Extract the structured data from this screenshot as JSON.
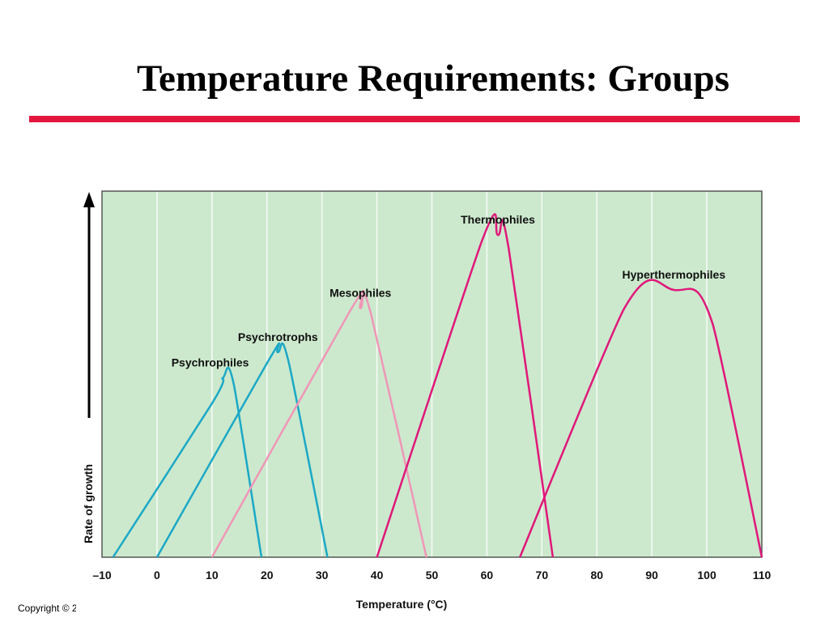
{
  "slide": {
    "title": "Temperature Requirements: Groups",
    "rule_color": "#e3173e",
    "copyright": "Copyright © 2"
  },
  "chart_data": {
    "type": "line",
    "xlabel": "Temperature (°C)",
    "ylabel": "Rate of growth",
    "xlim": [
      -10,
      110
    ],
    "ylim": [
      0,
      100
    ],
    "x_ticks": [
      "–10",
      "0",
      "10",
      "20",
      "30",
      "40",
      "50",
      "60",
      "70",
      "80",
      "90",
      "100",
      "110"
    ],
    "x_tick_values": [
      -10,
      0,
      10,
      20,
      30,
      40,
      50,
      60,
      70,
      80,
      90,
      100,
      110
    ],
    "grid": "vertical",
    "background": "#cce9cd",
    "series": [
      {
        "name": "Psychrophiles",
        "color": "#1ba8c6",
        "points": [
          [
            -8,
            0
          ],
          [
            10,
            42
          ],
          [
            12,
            49
          ],
          [
            14,
            47
          ],
          [
            19,
            0
          ]
        ]
      },
      {
        "name": "Psychrotrophs",
        "color": "#1ba8c6",
        "points": [
          [
            0,
            0
          ],
          [
            20,
            53
          ],
          [
            22,
            56
          ],
          [
            24,
            53
          ],
          [
            31,
            0
          ]
        ]
      },
      {
        "name": "Mesophiles",
        "color": "#f096b8",
        "points": [
          [
            10,
            0
          ],
          [
            35,
            67
          ],
          [
            37,
            68
          ],
          [
            39,
            66
          ],
          [
            49,
            0
          ]
        ]
      },
      {
        "name": "Thermophiles",
        "color": "#e0177a",
        "points": [
          [
            40,
            0
          ],
          [
            59,
            86
          ],
          [
            62,
            88
          ],
          [
            64,
            84
          ],
          [
            72,
            0
          ]
        ]
      },
      {
        "name": "Hyperthermophiles",
        "color": "#e0177a",
        "points": [
          [
            66,
            0
          ],
          [
            85,
            68
          ],
          [
            94,
            73
          ],
          [
            101,
            64
          ],
          [
            110,
            0
          ]
        ]
      }
    ]
  }
}
